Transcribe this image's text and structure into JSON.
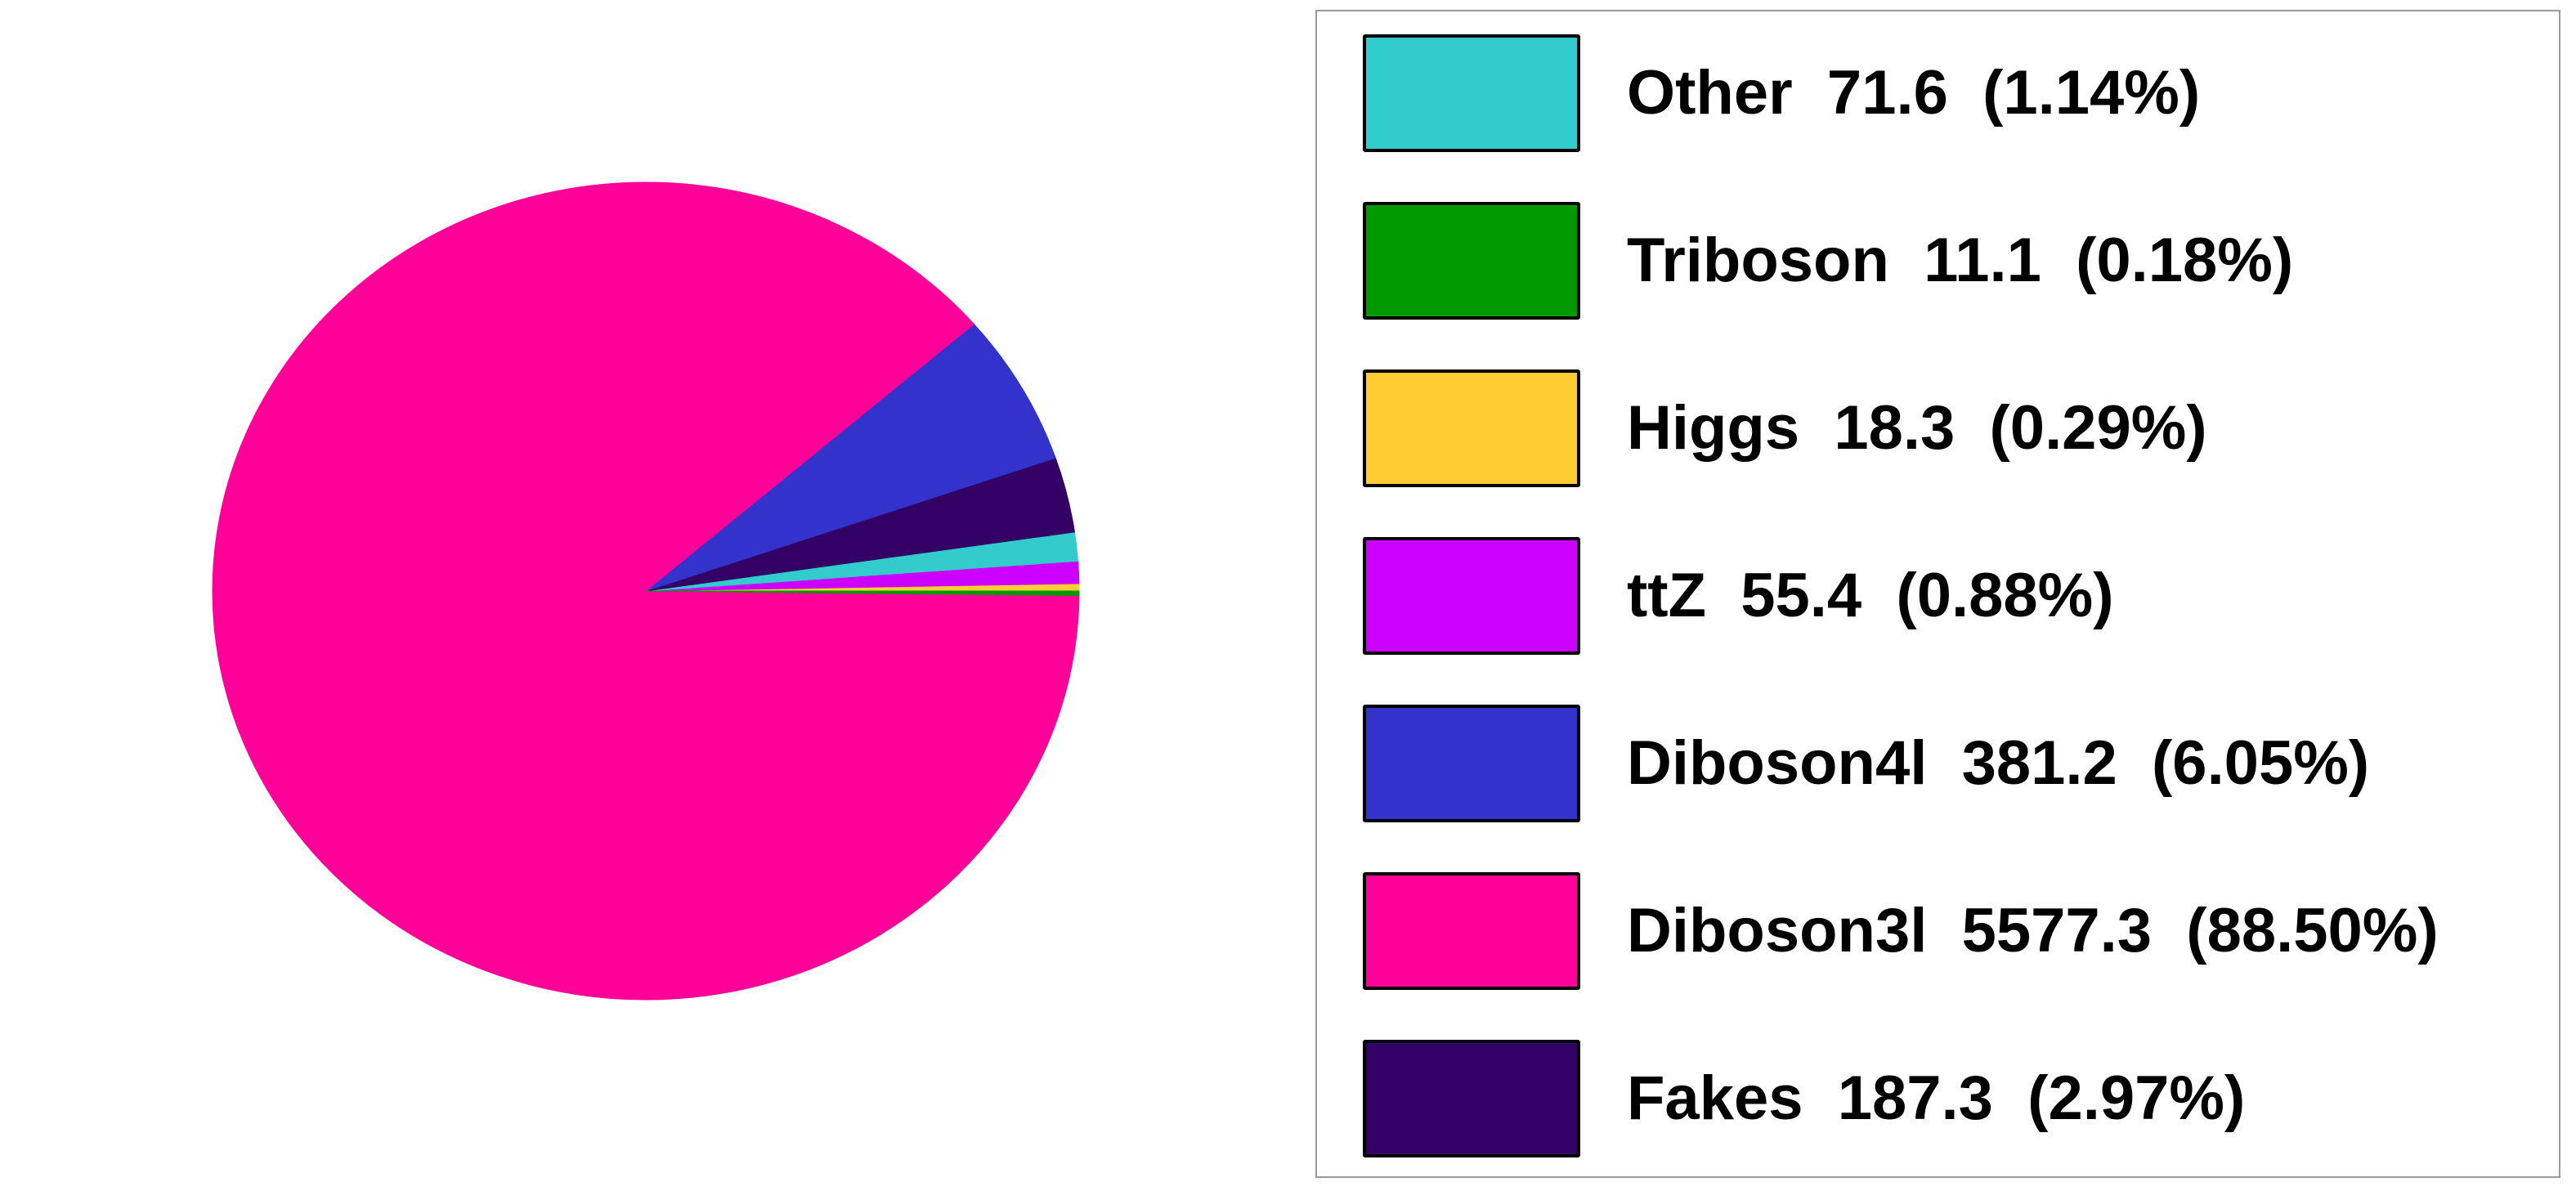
{
  "chart_data": {
    "type": "pie",
    "title": "",
    "slices": [
      {
        "label": "Other",
        "value": 71.6,
        "percent_label": "(1.14%)",
        "color": "#33CCCC"
      },
      {
        "label": "Triboson",
        "value": 11.1,
        "percent_label": "(0.18%)",
        "color": "#009900"
      },
      {
        "label": "Higgs",
        "value": 18.3,
        "percent_label": "(0.29%)",
        "color": "#FFCC33"
      },
      {
        "label": "ttZ",
        "value": 55.4,
        "percent_label": "(0.88%)",
        "color": "#CC00FF"
      },
      {
        "label": "Diboson4l",
        "value": 381.2,
        "percent_label": "(6.05%)",
        "color": "#3333CC"
      },
      {
        "label": "Diboson3l",
        "value": 5577.3,
        "percent_label": "(88.50%)",
        "color": "#FF0099"
      },
      {
        "label": "Fakes",
        "value": 187.3,
        "percent_label": "(2.97%)",
        "color": "#330066"
      }
    ],
    "legend_entries": [
      "Other  71.6  (1.14%)",
      "Triboson  11.1  (0.18%)",
      "Higgs  18.3  (0.29%)",
      "ttZ  55.4  (0.88%)",
      "Diboson4l  381.2  (6.05%)",
      "Diboson3l  5577.3  (88.50%)",
      "Fakes  187.3  (2.97%)"
    ],
    "legend_placement": "right",
    "draw_order_counterclockwise_from_east": [
      "Higgs",
      "ttZ",
      "Other",
      "Fakes",
      "Diboson4l",
      "Diboson3l",
      "Triboson"
    ]
  }
}
